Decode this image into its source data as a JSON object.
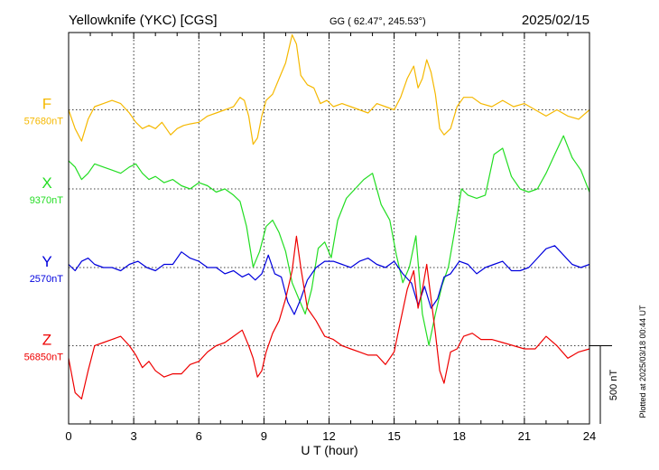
{
  "header": {
    "station": "Yellowknife (YKC)  [CGS]",
    "coords": "GG ( 62.47°, 245.53°)",
    "date": "2025/02/15"
  },
  "footnote": "Plotted at 2025/03/18 00:44 UT",
  "chart_data": {
    "type": "line",
    "xlabel": "U T (hour)",
    "xlim": [
      0,
      24
    ],
    "xticks": [
      "0",
      "3",
      "6",
      "9",
      "12",
      "15",
      "18",
      "21",
      "24"
    ],
    "scale_bar": {
      "label": "500 nT",
      "value_nT": 500
    },
    "grid": true,
    "series": [
      {
        "name": "F",
        "baseline_label": "57680nT",
        "color": "#f5b800",
        "x": [
          0,
          0.3,
          0.6,
          0.9,
          1.2,
          1.6,
          2.0,
          2.4,
          2.8,
          3.1,
          3.4,
          3.7,
          4.0,
          4.3,
          4.7,
          5.0,
          5.3,
          5.6,
          6.0,
          6.4,
          6.8,
          7.2,
          7.6,
          7.9,
          8.1,
          8.3,
          8.5,
          8.7,
          8.9,
          9.1,
          9.4,
          9.7,
          10.0,
          10.3,
          10.5,
          10.7,
          11.0,
          11.3,
          11.6,
          11.9,
          12.2,
          12.6,
          13.0,
          13.4,
          13.8,
          14.2,
          14.6,
          15.0,
          15.3,
          15.6,
          15.9,
          16.1,
          16.3,
          16.5,
          16.7,
          16.9,
          17.1,
          17.3,
          17.6,
          17.9,
          18.2,
          18.6,
          19.0,
          19.5,
          20.0,
          20.5,
          21.0,
          21.5,
          22.0,
          22.5,
          23.0,
          23.5,
          24.0
        ],
        "y": [
          0,
          -120,
          -200,
          -60,
          20,
          40,
          60,
          40,
          -20,
          -80,
          -120,
          -100,
          -120,
          -80,
          -160,
          -120,
          -100,
          -90,
          -80,
          -40,
          -20,
          0,
          20,
          80,
          60,
          -40,
          -220,
          -180,
          -40,
          60,
          100,
          200,
          300,
          480,
          420,
          220,
          160,
          140,
          40,
          60,
          20,
          40,
          20,
          0,
          -20,
          40,
          20,
          0,
          80,
          200,
          280,
          140,
          200,
          320,
          240,
          100,
          -120,
          -160,
          -120,
          20,
          80,
          80,
          40,
          20,
          60,
          20,
          40,
          0,
          -40,
          0,
          -40,
          -60,
          0
        ]
      },
      {
        "name": "X",
        "baseline_label": "9370nT",
        "color": "#22dd22",
        "x": [
          0,
          0.3,
          0.6,
          0.9,
          1.2,
          1.6,
          2.0,
          2.4,
          2.8,
          3.1,
          3.4,
          3.7,
          4.0,
          4.4,
          4.8,
          5.2,
          5.6,
          6.0,
          6.4,
          6.8,
          7.2,
          7.6,
          7.9,
          8.2,
          8.5,
          8.8,
          9.1,
          9.4,
          9.7,
          10.0,
          10.3,
          10.6,
          10.9,
          11.2,
          11.5,
          11.8,
          12.1,
          12.4,
          12.8,
          13.2,
          13.6,
          14.0,
          14.4,
          14.8,
          15.1,
          15.4,
          15.7,
          16.0,
          16.3,
          16.6,
          16.9,
          17.2,
          17.5,
          17.8,
          18.1,
          18.4,
          18.8,
          19.2,
          19.6,
          20.0,
          20.4,
          20.8,
          21.2,
          21.6,
          22.0,
          22.4,
          22.8,
          23.2,
          23.6,
          24.0
        ],
        "y": [
          180,
          140,
          60,
          100,
          160,
          140,
          120,
          100,
          140,
          160,
          100,
          60,
          80,
          40,
          60,
          20,
          0,
          40,
          20,
          -20,
          0,
          -40,
          -80,
          -240,
          -500,
          -400,
          -240,
          -200,
          -280,
          -400,
          -600,
          -700,
          -800,
          -640,
          -380,
          -340,
          -440,
          -200,
          -60,
          0,
          60,
          100,
          -100,
          -200,
          -420,
          -600,
          -500,
          -300,
          -800,
          -1000,
          -800,
          -620,
          -500,
          -260,
          0,
          -40,
          -60,
          -40,
          220,
          260,
          80,
          0,
          -20,
          0,
          100,
          220,
          340,
          200,
          120,
          -20
        ]
      },
      {
        "name": "Y",
        "baseline_label": "2570nT",
        "color": "#0000dd",
        "x": [
          0,
          0.3,
          0.6,
          0.9,
          1.2,
          1.6,
          2.0,
          2.4,
          2.8,
          3.2,
          3.6,
          4.0,
          4.4,
          4.8,
          5.2,
          5.6,
          6.0,
          6.4,
          6.8,
          7.2,
          7.6,
          8.0,
          8.3,
          8.6,
          8.9,
          9.2,
          9.5,
          9.8,
          10.1,
          10.4,
          10.7,
          11.0,
          11.4,
          11.8,
          12.2,
          12.6,
          13.0,
          13.4,
          13.8,
          14.2,
          14.6,
          15.0,
          15.4,
          15.8,
          16.1,
          16.4,
          16.7,
          17.0,
          17.3,
          17.6,
          18.0,
          18.4,
          18.8,
          19.2,
          19.6,
          20.0,
          20.4,
          20.8,
          21.2,
          21.6,
          22.0,
          22.4,
          22.8,
          23.2,
          23.6,
          24.0
        ],
        "y": [
          20,
          -20,
          40,
          60,
          20,
          0,
          0,
          -20,
          20,
          40,
          0,
          -20,
          20,
          20,
          100,
          60,
          40,
          0,
          0,
          -40,
          -20,
          -60,
          -40,
          -80,
          -40,
          80,
          -40,
          -60,
          -220,
          -300,
          -200,
          -80,
          0,
          40,
          40,
          20,
          0,
          40,
          60,
          20,
          0,
          40,
          -40,
          -100,
          -240,
          -120,
          -260,
          -200,
          -60,
          -40,
          40,
          20,
          -40,
          0,
          20,
          40,
          -20,
          -20,
          0,
          60,
          120,
          140,
          80,
          20,
          0,
          20
        ]
      },
      {
        "name": "Z",
        "baseline_label": "56850nT",
        "color": "#ee0000",
        "x": [
          0,
          0.3,
          0.6,
          0.9,
          1.2,
          1.6,
          2.0,
          2.4,
          2.8,
          3.1,
          3.4,
          3.7,
          4.0,
          4.4,
          4.8,
          5.2,
          5.6,
          6.0,
          6.4,
          6.8,
          7.2,
          7.6,
          8.0,
          8.3,
          8.5,
          8.7,
          8.9,
          9.1,
          9.4,
          9.7,
          10.0,
          10.3,
          10.5,
          10.7,
          11.0,
          11.4,
          11.8,
          12.2,
          12.6,
          13.0,
          13.4,
          13.8,
          14.2,
          14.6,
          15.0,
          15.3,
          15.6,
          15.9,
          16.1,
          16.3,
          16.5,
          16.7,
          16.9,
          17.1,
          17.3,
          17.6,
          17.9,
          18.2,
          18.6,
          19.0,
          19.5,
          20.0,
          20.5,
          21.0,
          21.5,
          22.0,
          22.5,
          23.0,
          23.5,
          24.0
        ],
        "y": [
          -80,
          -300,
          -340,
          -160,
          0,
          20,
          40,
          60,
          0,
          -60,
          -140,
          -100,
          -160,
          -200,
          -180,
          -180,
          -120,
          -100,
          -40,
          0,
          20,
          60,
          100,
          0,
          -80,
          -200,
          -160,
          -40,
          80,
          160,
          300,
          480,
          700,
          500,
          240,
          160,
          60,
          40,
          0,
          -20,
          -40,
          -60,
          -60,
          -120,
          -40,
          160,
          360,
          480,
          240,
          360,
          520,
          300,
          80,
          -160,
          -240,
          -40,
          -20,
          60,
          80,
          40,
          40,
          20,
          0,
          -20,
          -20,
          60,
          0,
          -80,
          -40,
          -20
        ]
      }
    ]
  }
}
